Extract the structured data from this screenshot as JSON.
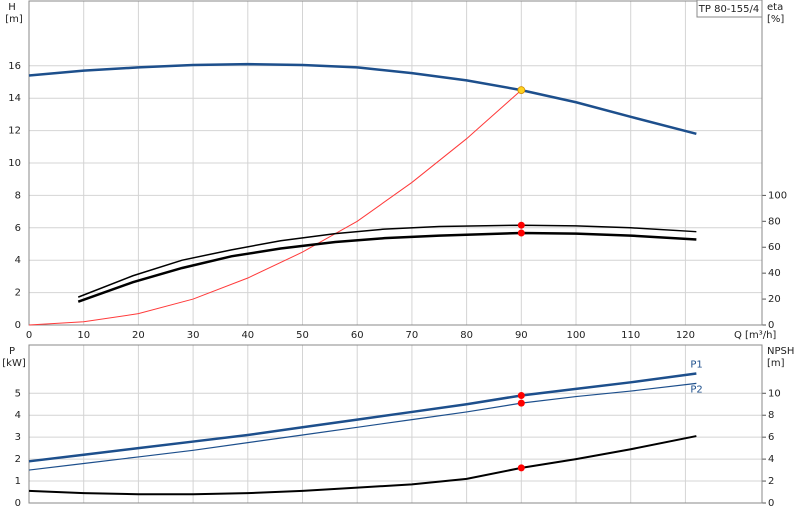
{
  "chart_data": [
    {
      "type": "line",
      "title": "TP 80-155/4",
      "ylabel": "H",
      "yunit": "[m]",
      "y2label": "eta",
      "y2unit": "[%]",
      "xlabel": "Q [m³/h]",
      "xlim": [
        0,
        134
      ],
      "xticks": [
        0,
        10,
        20,
        30,
        40,
        50,
        60,
        70,
        80,
        90,
        100,
        110,
        120
      ],
      "ylim": [
        0,
        20
      ],
      "yticks": [
        0,
        2,
        4,
        6,
        8,
        10,
        12,
        14,
        16
      ],
      "y2lim": [
        0,
        250
      ],
      "y2ticks": [
        0,
        20,
        40,
        60,
        80,
        100
      ],
      "grid": true,
      "show_xtick_labels": true,
      "series": [
        {
          "color": "#1d4f8c",
          "width": 2.5,
          "x": [
            0,
            10,
            20,
            30,
            40,
            50,
            60,
            70,
            80,
            90,
            100,
            110,
            122
          ],
          "values": [
            15.4,
            15.7,
            15.9,
            16.05,
            16.1,
            16.05,
            15.9,
            15.55,
            15.1,
            14.5,
            13.75,
            12.85,
            11.8
          ]
        },
        {
          "color": "#ff3a3a",
          "width": 1,
          "x": [
            0,
            10,
            20,
            30,
            40,
            50,
            60,
            70,
            80,
            90
          ],
          "values": [
            0,
            0.2,
            0.7,
            1.6,
            2.9,
            4.5,
            6.4,
            8.8,
            11.5,
            14.5
          ]
        },
        {
          "color": "#000000",
          "width": 1.5,
          "axis": "y2",
          "x": [
            9,
            19,
            28,
            37,
            46,
            56,
            65,
            75,
            90,
            100,
            110,
            122
          ],
          "values": [
            21.5,
            38,
            50,
            58,
            65,
            70.5,
            74,
            76,
            77,
            76.5,
            75,
            72
          ]
        },
        {
          "color": "#000000",
          "width": 2.5,
          "axis": "y2",
          "x": [
            9,
            19,
            28,
            37,
            46,
            56,
            65,
            75,
            90,
            100,
            110,
            122
          ],
          "values": [
            18,
            33,
            44,
            53,
            59,
            64,
            67,
            69,
            71,
            70.5,
            69,
            66
          ]
        }
      ],
      "markers": [
        {
          "x": 90,
          "y": 14.5,
          "color": "#ffd21f"
        },
        {
          "x": 90,
          "y": 77,
          "axis": "y2",
          "color": "#ff0000"
        },
        {
          "x": 90,
          "y": 71,
          "axis": "y2",
          "color": "#ff0000"
        }
      ]
    },
    {
      "type": "line",
      "ylabel": "P",
      "yunit": "[kW]",
      "y2label": "NPSH",
      "y2unit": "[m]",
      "xlim": [
        0,
        134
      ],
      "xticks": [
        0,
        10,
        20,
        30,
        40,
        50,
        60,
        70,
        80,
        90,
        100,
        110,
        120
      ],
      "ylim": [
        0,
        7.2
      ],
      "yticks": [
        0,
        1,
        2,
        3,
        4,
        5
      ],
      "y2lim": [
        0,
        14.4
      ],
      "y2ticks": [
        0,
        2,
        4,
        6,
        8,
        10
      ],
      "grid": true,
      "show_xtick_labels": false,
      "series": [
        {
          "name": "P1",
          "color": "#1d4f8c",
          "width": 2.5,
          "x": [
            0,
            10,
            20,
            30,
            40,
            50,
            60,
            70,
            80,
            90,
            100,
            110,
            122
          ],
          "values": [
            1.9,
            2.2,
            2.5,
            2.8,
            3.1,
            3.45,
            3.8,
            4.15,
            4.5,
            4.9,
            5.2,
            5.5,
            5.9
          ]
        },
        {
          "name": "P2",
          "color": "#1d4f8c",
          "width": 1.2,
          "x": [
            0,
            10,
            20,
            30,
            40,
            50,
            60,
            70,
            80,
            90,
            100,
            110,
            122
          ],
          "values": [
            1.5,
            1.8,
            2.1,
            2.4,
            2.75,
            3.1,
            3.45,
            3.8,
            4.15,
            4.55,
            4.85,
            5.1,
            5.45
          ]
        },
        {
          "color": "#000000",
          "width": 2,
          "axis": "y2",
          "x": [
            0,
            10,
            20,
            30,
            40,
            50,
            60,
            70,
            80,
            90,
            100,
            110,
            122
          ],
          "values": [
            1.1,
            0.9,
            0.8,
            0.8,
            0.9,
            1.1,
            1.4,
            1.7,
            2.2,
            3.2,
            4.0,
            4.9,
            6.1
          ]
        }
      ],
      "markers": [
        {
          "x": 90,
          "y": 4.9,
          "color": "#ff0000"
        },
        {
          "x": 90,
          "y": 4.55,
          "color": "#ff0000"
        },
        {
          "x": 90,
          "y": 3.2,
          "axis": "y2",
          "color": "#ff0000"
        }
      ]
    }
  ]
}
